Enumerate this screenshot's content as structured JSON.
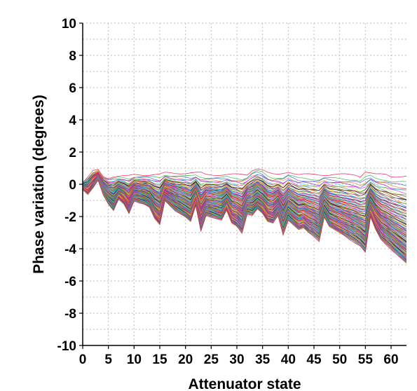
{
  "chart_data": {
    "type": "line",
    "title": "",
    "xlabel": "Attenuator state",
    "ylabel": "Phase variation (degrees)",
    "xlim": [
      0,
      63
    ],
    "ylim": [
      -10,
      10
    ],
    "xticks": [
      0,
      5,
      10,
      15,
      20,
      25,
      30,
      35,
      40,
      45,
      50,
      55,
      60
    ],
    "yticks": [
      10,
      8,
      6,
      4,
      2,
      0,
      -2,
      -4,
      -6,
      -8,
      -10
    ],
    "grid": true,
    "legend": "none",
    "series_count": 120,
    "envelope": {
      "x": [
        0,
        1,
        2,
        3,
        4,
        5,
        6,
        7,
        8,
        9,
        10,
        11,
        12,
        13,
        14,
        15,
        16,
        17,
        18,
        19,
        20,
        21,
        22,
        23,
        24,
        25,
        26,
        27,
        28,
        29,
        30,
        31,
        32,
        33,
        34,
        35,
        36,
        37,
        38,
        39,
        40,
        41,
        42,
        43,
        44,
        45,
        46,
        47,
        48,
        49,
        50,
        51,
        52,
        53,
        54,
        55,
        56,
        57,
        58,
        59,
        60,
        61,
        62,
        63
      ],
      "upper": [
        0.1,
        0.4,
        0.8,
        0.9,
        0.5,
        0.4,
        0.5,
        0.5,
        0.5,
        0.5,
        0.6,
        0.6,
        0.6,
        0.6,
        0.6,
        0.6,
        0.7,
        0.7,
        0.7,
        0.7,
        0.7,
        0.7,
        0.7,
        0.7,
        0.6,
        0.6,
        0.6,
        0.6,
        0.6,
        0.6,
        0.6,
        0.6,
        0.6,
        0.9,
        1.0,
        0.9,
        0.7,
        0.6,
        0.6,
        0.7,
        0.8,
        0.7,
        0.6,
        0.6,
        0.6,
        0.6,
        0.6,
        0.6,
        0.6,
        0.6,
        0.6,
        0.6,
        0.6,
        0.6,
        0.5,
        0.8,
        0.7,
        0.6,
        0.6,
        0.6,
        0.5,
        0.5,
        0.5,
        0.5
      ],
      "lower": [
        -0.3,
        -0.6,
        -0.2,
        0.3,
        -0.6,
        -1.2,
        -1.6,
        -0.9,
        -1.2,
        -1.8,
        -1.0,
        -1.1,
        -1.2,
        -1.4,
        -2.1,
        -2.5,
        -1.0,
        -1.3,
        -1.6,
        -1.8,
        -2.0,
        -2.3,
        -1.3,
        -2.9,
        -1.9,
        -2.0,
        -2.1,
        -2.2,
        -1.6,
        -2.4,
        -2.6,
        -3.0,
        -1.8,
        -1.9,
        -1.5,
        -1.8,
        -2.3,
        -2.4,
        -1.9,
        -3.1,
        -2.2,
        -2.5,
        -2.8,
        -2.7,
        -3.0,
        -3.2,
        -3.5,
        -2.0,
        -2.6,
        -2.8,
        -3.0,
        -3.2,
        -3.4,
        -3.6,
        -3.8,
        -4.2,
        -2.0,
        -2.8,
        -3.4,
        -3.7,
        -4.0,
        -4.3,
        -4.6,
        -4.9
      ]
    },
    "series_colors": [
      "#e6194b",
      "#3cb44b",
      "#4363d8",
      "#f58231",
      "#911eb4",
      "#42d4f4",
      "#f032e6",
      "#bfef45",
      "#469990",
      "#9a6324",
      "#800000",
      "#808000",
      "#000075",
      "#a9a9a9",
      "#ff7f50",
      "#2e8b57",
      "#daa520",
      "#1e90ff",
      "#ff1493",
      "#00ced1",
      "#8b008b",
      "#556b2f",
      "#c71585",
      "#4682b4",
      "#d2691e",
      "#6a5acd",
      "#20b2aa",
      "#b8860b",
      "#708090",
      "#dc143c"
    ]
  }
}
